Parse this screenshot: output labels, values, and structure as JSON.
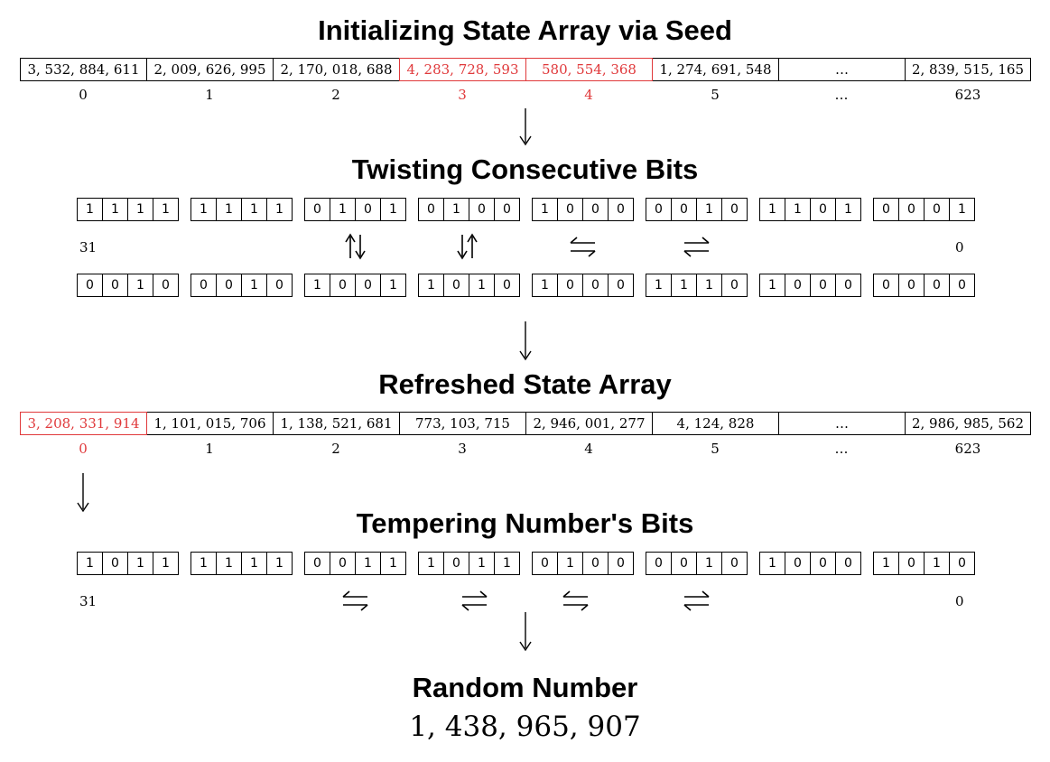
{
  "sections": {
    "init_title": "Initializing State Array via Seed",
    "twist_title": "Twisting Consecutive Bits",
    "refreshed_title": "Refreshed State Array",
    "temper_title": "Tempering Number's Bits",
    "random_title": "Random Number"
  },
  "initial_state": {
    "values": [
      "3, 532, 884, 611",
      "2, 009, 626, 995",
      "2, 170, 018, 688",
      "4, 283, 728, 593",
      "580, 554, 368",
      "1, 274, 691, 548",
      "…",
      "2, 839, 515, 165"
    ],
    "indices": [
      "0",
      "1",
      "2",
      "3",
      "4",
      "5",
      "…",
      "623"
    ],
    "highlighted": [
      3,
      4
    ]
  },
  "twist": {
    "top_nibbles": [
      [
        "1",
        "1",
        "1",
        "1"
      ],
      [
        "1",
        "1",
        "1",
        "1"
      ],
      [
        "0",
        "1",
        "0",
        "1"
      ],
      [
        "0",
        "1",
        "0",
        "0"
      ],
      [
        "1",
        "0",
        "0",
        "0"
      ],
      [
        "0",
        "0",
        "1",
        "0"
      ],
      [
        "1",
        "1",
        "0",
        "1"
      ],
      [
        "0",
        "0",
        "0",
        "1"
      ]
    ],
    "bottom_nibbles": [
      [
        "0",
        "0",
        "1",
        "0"
      ],
      [
        "0",
        "0",
        "1",
        "0"
      ],
      [
        "1",
        "0",
        "0",
        "1"
      ],
      [
        "1",
        "0",
        "1",
        "0"
      ],
      [
        "1",
        "0",
        "0",
        "0"
      ],
      [
        "1",
        "1",
        "1",
        "0"
      ],
      [
        "1",
        "0",
        "0",
        "0"
      ],
      [
        "0",
        "0",
        "0",
        "0"
      ]
    ],
    "msb_label": "31",
    "lsb_label": "0",
    "symbols": [
      "up-down-arrows-icon",
      "down-up-arrows-icon",
      "left-right-harpoons-icon",
      "right-left-harpoons-icon"
    ]
  },
  "refreshed_state": {
    "values": [
      "3, 208, 331, 914",
      "1, 101, 015, 706",
      "1, 138, 521, 681",
      "773, 103, 715",
      "2, 946, 001, 277",
      "4, 124, 828",
      "…",
      "2, 986, 985, 562"
    ],
    "indices": [
      "0",
      "1",
      "2",
      "3",
      "4",
      "5",
      "…",
      "623"
    ],
    "highlighted": [
      0
    ]
  },
  "temper": {
    "nibbles": [
      [
        "1",
        "0",
        "1",
        "1"
      ],
      [
        "1",
        "1",
        "1",
        "1"
      ],
      [
        "0",
        "0",
        "1",
        "1"
      ],
      [
        "1",
        "0",
        "1",
        "1"
      ],
      [
        "0",
        "1",
        "0",
        "0"
      ],
      [
        "0",
        "0",
        "1",
        "0"
      ],
      [
        "1",
        "0",
        "0",
        "0"
      ],
      [
        "1",
        "0",
        "1",
        "0"
      ]
    ],
    "msb_label": "31",
    "lsb_label": "0",
    "symbols": [
      "left-right-harpoons-icon",
      "right-left-harpoons-icon",
      "left-right-harpoons-icon",
      "right-left-harpoons-icon"
    ]
  },
  "random_number": "1, 438, 965, 907",
  "colors": {
    "highlight": "#e0393b",
    "ink": "#000000"
  }
}
